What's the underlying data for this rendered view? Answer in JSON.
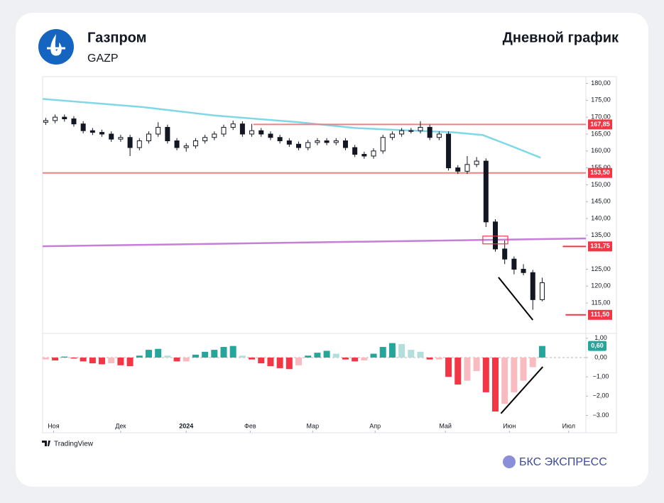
{
  "header": {
    "title": "Газпром",
    "ticker": "GAZP",
    "subtitle": "Дневной график"
  },
  "footer": {
    "source": "TradingView",
    "brand": "БКС ЭКСПРЕСС"
  },
  "chart_data": [
    {
      "type": "candlestick",
      "x": [
        1,
        4,
        7,
        10,
        13,
        16,
        19,
        22,
        25,
        28,
        31,
        34,
        37,
        40,
        43,
        46,
        49,
        52,
        55,
        58,
        61,
        64,
        67,
        70,
        73,
        76,
        79,
        82,
        85,
        88,
        91,
        94,
        97,
        100,
        103,
        106,
        109,
        112,
        115,
        118,
        121,
        124,
        127,
        130,
        133,
        136,
        139,
        142,
        145,
        148,
        151,
        154,
        157,
        160
      ],
      "open": [
        168.5,
        169,
        170,
        169.5,
        168,
        166,
        165.5,
        165,
        163.5,
        164,
        161,
        163,
        165,
        167,
        163,
        161,
        161.5,
        163,
        164,
        165,
        167,
        168,
        165,
        166,
        165,
        164,
        163,
        162,
        161,
        162.5,
        163,
        162.5,
        163,
        161,
        159,
        158.5,
        160,
        164,
        165,
        166,
        166,
        167,
        164,
        165,
        155,
        154,
        156,
        157,
        139,
        131,
        128,
        125,
        124,
        116
      ],
      "high": [
        169.8,
        170.8,
        170.8,
        170.3,
        168.8,
        166.8,
        166.3,
        165.8,
        164.8,
        164.8,
        163.8,
        165.8,
        168.5,
        167.8,
        163.8,
        162.3,
        163.8,
        164.8,
        165.8,
        167.8,
        169,
        168.8,
        168,
        166.8,
        165.8,
        164.8,
        163.8,
        162.8,
        163.3,
        163.8,
        163.8,
        163.8,
        163.8,
        161.8,
        159.8,
        160.8,
        164.8,
        165.8,
        166.8,
        166.8,
        168.8,
        167.8,
        165.8,
        165.8,
        155.8,
        158.5,
        158.2,
        157.8,
        139.8,
        133.5,
        128.8,
        126.5,
        124.8,
        122.5
      ],
      "low": [
        167.7,
        168.2,
        168.7,
        167.2,
        165.2,
        164.7,
        164.2,
        162.7,
        162.7,
        158.5,
        160.2,
        162.2,
        164.2,
        162.2,
        160.2,
        159.8,
        160.7,
        162.2,
        163.2,
        164.2,
        166.2,
        164.2,
        164.2,
        164.2,
        163.2,
        162.2,
        161.2,
        160.2,
        160.2,
        161.7,
        161.7,
        161.7,
        160.2,
        158.2,
        157.7,
        157.7,
        159.2,
        163.2,
        164.2,
        165.2,
        165.2,
        163.2,
        163.2,
        154.2,
        153.2,
        153.2,
        155.2,
        137.5,
        130.2,
        126.5,
        123.5,
        123.2,
        113,
        115.5
      ],
      "close": [
        169,
        170,
        169.5,
        168,
        166,
        165.5,
        165,
        163.5,
        164,
        161,
        163,
        165,
        167,
        163,
        161,
        161.5,
        163,
        164,
        165,
        167,
        168,
        165,
        166,
        165,
        164,
        163,
        162,
        161,
        162.5,
        163,
        162.5,
        163,
        161,
        159,
        158.5,
        160,
        164,
        165,
        166,
        166,
        167,
        164,
        165,
        155,
        154,
        156,
        157,
        139,
        131,
        128,
        125,
        124,
        116,
        121
      ],
      "up_color": "#ffffff",
      "down_color": "#131722",
      "xlim": [
        0,
        174
      ],
      "ylim": [
        106,
        182
      ],
      "yticks": [
        {
          "value": 115,
          "label": "115,00"
        },
        {
          "value": 120,
          "label": "120,00"
        },
        {
          "value": 125,
          "label": "125,00"
        },
        {
          "value": 135,
          "label": "135,00"
        },
        {
          "value": 140,
          "label": "140,00"
        },
        {
          "value": 145,
          "label": "145,00"
        },
        {
          "value": 150,
          "label": "150,00"
        },
        {
          "value": 155,
          "label": "155,00"
        },
        {
          "value": 160,
          "label": "160,00"
        },
        {
          "value": 165,
          "label": "165,00"
        },
        {
          "value": 170,
          "label": "170,00"
        },
        {
          "value": 175,
          "label": "175,00"
        },
        {
          "value": 180,
          "label": "180,00"
        }
      ],
      "grid": false,
      "lines": [
        {
          "color": "#7fd8e6",
          "x": [
            0,
            32,
            55,
            82,
            100,
            114,
            132,
            141,
            150,
            159.5
          ],
          "values": [
            175.4,
            173,
            170.5,
            168.5,
            166.8,
            166.2,
            165.5,
            164.7,
            161.5,
            158
          ]
        },
        {
          "color": "#c77ed8",
          "x": [
            0,
            174
          ],
          "values": [
            131.8,
            134.1
          ]
        }
      ],
      "levels": [
        {
          "value": 167.85,
          "label": "167,85",
          "x_start": 67.5,
          "color": "#f08080"
        },
        {
          "value": 153.5,
          "label": "153,50",
          "x_start": 0,
          "color": "#f08080"
        },
        {
          "value": 131.75,
          "label": "131,75",
          "x_start": 166.6,
          "color": "#f23645"
        },
        {
          "value": 111.5,
          "label": "111,50",
          "x_start": 167.5,
          "color": "#f23645"
        }
      ],
      "tag_color": "#f23645",
      "boxes": [
        {
          "x": [
            141,
            149
          ],
          "y": [
            132.5,
            134.8
          ],
          "color": "#f23645"
        }
      ],
      "trendlines": [
        {
          "x": [
            146,
            157
          ],
          "y": [
            122.6,
            110
          ],
          "color": "#000000"
        }
      ]
    },
    {
      "type": "bar",
      "x": [
        1,
        4,
        7,
        10,
        13,
        16,
        19,
        22,
        25,
        28,
        31,
        34,
        37,
        40,
        43,
        46,
        49,
        52,
        55,
        58,
        61,
        64,
        67,
        70,
        73,
        76,
        79,
        82,
        85,
        88,
        91,
        94,
        97,
        100,
        103,
        106,
        109,
        112,
        115,
        118,
        121,
        124,
        127,
        130,
        133,
        136,
        139,
        142,
        145,
        148,
        151,
        154,
        157,
        160
      ],
      "values": [
        -0.1,
        -0.15,
        0.05,
        -0.05,
        -0.2,
        -0.3,
        -0.35,
        -0.3,
        -0.4,
        -0.45,
        0.1,
        0.4,
        0.45,
        0.1,
        -0.2,
        -0.2,
        0.15,
        0.3,
        0.4,
        0.55,
        0.6,
        0.1,
        -0.1,
        -0.3,
        -0.45,
        -0.55,
        -0.6,
        -0.4,
        0.1,
        0.25,
        0.35,
        0.2,
        -0.1,
        -0.2,
        -0.15,
        0.2,
        0.55,
        0.75,
        0.7,
        0.4,
        0.3,
        -0.1,
        -0.1,
        -1.0,
        -1.4,
        -1.2,
        -0.7,
        -1.8,
        -2.8,
        -2.4,
        -1.8,
        -1.2,
        -0.5,
        0.6
      ],
      "colors": {
        "positive_rising": "#26a69a",
        "positive_falling": "#b2dfdb",
        "negative_falling": "#f23645",
        "negative_rising": "#f8bbc0"
      },
      "last_label": {
        "value": 0.6,
        "label": "0,60",
        "color": "#26a69a"
      },
      "xlim": [
        0,
        174
      ],
      "ylim": [
        -3.9,
        1.25
      ],
      "yticks": [
        {
          "value": 1,
          "label": "1,00"
        },
        {
          "value": 0,
          "label": "0,00"
        },
        {
          "value": -1,
          "label": "−1,00"
        },
        {
          "value": -2,
          "label": "−2,00"
        },
        {
          "value": -3,
          "label": "−3.00"
        }
      ],
      "xticks": [
        {
          "value": 3.5,
          "label": "Ноя"
        },
        {
          "value": 25,
          "label": "Дек"
        },
        {
          "value": 46,
          "label": "2024"
        },
        {
          "value": 66.5,
          "label": "Фев"
        },
        {
          "value": 86.5,
          "label": "Мар"
        },
        {
          "value": 106.5,
          "label": "Апр"
        },
        {
          "value": 129,
          "label": "Май"
        },
        {
          "value": 149.5,
          "label": "Июн"
        },
        {
          "value": 168.5,
          "label": "Июл"
        }
      ],
      "zero_line": true,
      "trendlines": [
        {
          "x": [
            146.8,
            160.2
          ],
          "y": [
            -2.9,
            -0.48
          ],
          "color": "#000000"
        }
      ]
    }
  ]
}
